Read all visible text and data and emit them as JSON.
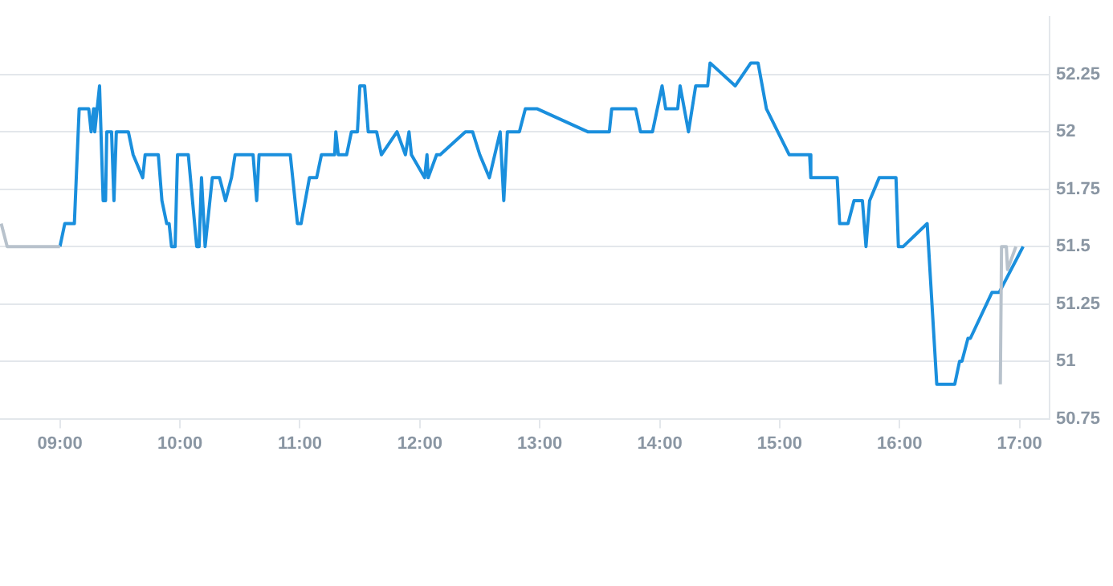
{
  "chart_data": {
    "type": "line",
    "xlim": [
      8.5,
      17.25
    ],
    "ylim": [
      50.75,
      52.5
    ],
    "xticks": [
      {
        "value": 9,
        "label": "09:00"
      },
      {
        "value": 10,
        "label": "10:00"
      },
      {
        "value": 11,
        "label": "11:00"
      },
      {
        "value": 12,
        "label": "12:00"
      },
      {
        "value": 13,
        "label": "13:00"
      },
      {
        "value": 14,
        "label": "14:00"
      },
      {
        "value": 15,
        "label": "15:00"
      },
      {
        "value": 16,
        "label": "16:00"
      },
      {
        "value": 17,
        "label": "17:00"
      }
    ],
    "yticks": [
      50.75,
      51,
      51.25,
      51.5,
      51.75,
      52,
      52.25
    ],
    "grid": "y",
    "legend": false,
    "marker": "none",
    "line_style": "solid",
    "series": [
      {
        "color": "#b8c2cc",
        "x": [
          8.51,
          8.56,
          9.0
        ],
        "values": [
          51.6,
          51.5,
          51.5
        ]
      },
      {
        "color": "#b8c2cc",
        "x": [
          16.84,
          16.85,
          16.89,
          16.9,
          16.97
        ],
        "values": [
          50.9,
          51.5,
          51.5,
          51.4,
          51.5
        ]
      },
      {
        "color": "#1a8fdd",
        "x": [
          9.0,
          9.04,
          9.12,
          9.16,
          9.24,
          9.26,
          9.28,
          9.29,
          9.31,
          9.33,
          9.36,
          9.38,
          9.39,
          9.43,
          9.45,
          9.47,
          9.57,
          9.61,
          9.69,
          9.71,
          9.82,
          9.85,
          9.89,
          9.91,
          9.93,
          9.96,
          9.98,
          10.07,
          10.14,
          10.16,
          10.18,
          10.21,
          10.27,
          10.33,
          10.38,
          10.43,
          10.46,
          10.61,
          10.64,
          10.66,
          10.92,
          10.98,
          11.01,
          11.08,
          11.14,
          11.18,
          11.29,
          11.3,
          11.32,
          11.39,
          11.43,
          11.48,
          11.5,
          11.54,
          11.57,
          11.64,
          11.68,
          11.81,
          11.88,
          11.91,
          11.93,
          12.04,
          12.06,
          12.07,
          12.14,
          12.17,
          12.38,
          12.44,
          12.5,
          12.58,
          12.67,
          12.7,
          12.73,
          12.83,
          12.88,
          12.98,
          13.4,
          13.58,
          13.6,
          13.8,
          13.84,
          13.94,
          14.02,
          14.05,
          14.15,
          14.17,
          14.24,
          14.3,
          14.4,
          14.42,
          14.63,
          14.76,
          14.82,
          14.89,
          15.08,
          15.25,
          15.26,
          15.48,
          15.5,
          15.57,
          15.62,
          15.69,
          15.72,
          15.75,
          15.83,
          15.97,
          15.99,
          16.03,
          16.23,
          16.31,
          16.46,
          16.5,
          16.52,
          16.57,
          16.59,
          16.77,
          16.83,
          17.03
        ],
        "values": [
          51.5,
          51.6,
          51.6,
          52.1,
          52.1,
          52.0,
          52.1,
          52.0,
          52.1,
          52.2,
          51.7,
          51.7,
          52.0,
          52.0,
          51.7,
          52.0,
          52.0,
          51.9,
          51.8,
          51.9,
          51.9,
          51.7,
          51.6,
          51.6,
          51.5,
          51.5,
          51.9,
          51.9,
          51.5,
          51.5,
          51.8,
          51.5,
          51.8,
          51.8,
          51.7,
          51.8,
          51.9,
          51.9,
          51.7,
          51.9,
          51.9,
          51.6,
          51.6,
          51.8,
          51.8,
          51.9,
          51.9,
          52.0,
          51.9,
          51.9,
          52.0,
          52.0,
          52.2,
          52.2,
          52.0,
          52.0,
          51.9,
          52.0,
          51.9,
          52.0,
          51.9,
          51.8,
          51.9,
          51.8,
          51.9,
          51.9,
          52.0,
          52.0,
          51.9,
          51.8,
          52.0,
          51.7,
          52.0,
          52.0,
          52.1,
          52.1,
          52.0,
          52.0,
          52.1,
          52.1,
          52.0,
          52.0,
          52.2,
          52.1,
          52.1,
          52.2,
          52.0,
          52.2,
          52.2,
          52.3,
          52.2,
          52.3,
          52.3,
          52.1,
          51.9,
          51.9,
          51.8,
          51.8,
          51.6,
          51.6,
          51.7,
          51.7,
          51.5,
          51.7,
          51.8,
          51.8,
          51.5,
          51.5,
          51.6,
          50.9,
          50.9,
          51.0,
          51.0,
          51.1,
          51.1,
          51.3,
          51.3,
          51.5
        ]
      }
    ]
  }
}
